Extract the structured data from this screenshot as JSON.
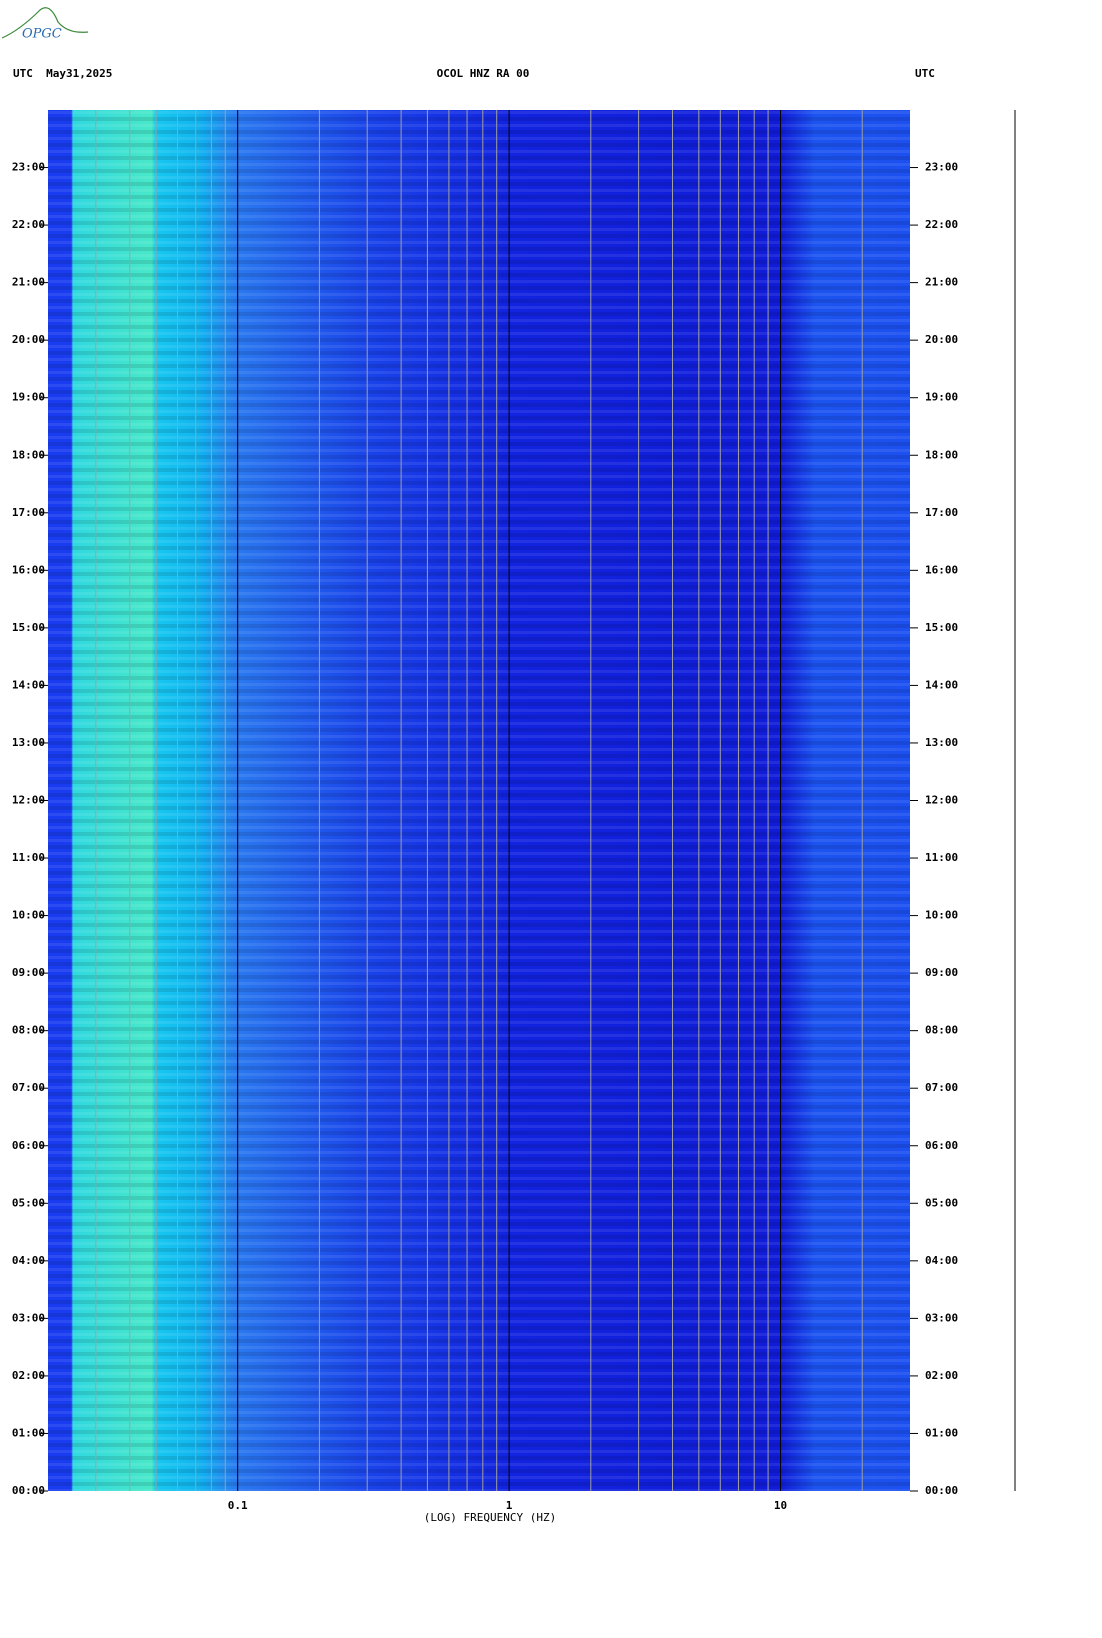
{
  "chart_data": {
    "type": "spectrogram",
    "logo": "OPGC",
    "title_left": "UTC  May31,2025",
    "title": "OCOL HNZ RA 00",
    "title_right": "UTC",
    "x_label": "(LOG) FREQUENCY (HZ)",
    "x_scale": "log",
    "xlim": [
      0.02,
      30
    ],
    "xticks": [
      0.1,
      1,
      10
    ],
    "x_minor_ticks": [
      0.03,
      0.04,
      0.05,
      0.06,
      0.07,
      0.08,
      0.09,
      0.2,
      0.3,
      0.4,
      0.5,
      0.6,
      0.7,
      0.8,
      0.9,
      2,
      3,
      4,
      5,
      6,
      7,
      8,
      9,
      20
    ],
    "ylim": [
      0,
      24
    ],
    "yticks": [
      {
        "value": 0,
        "label": "00:00"
      },
      {
        "value": 1,
        "label": "01:00"
      },
      {
        "value": 2,
        "label": "02:00"
      },
      {
        "value": 3,
        "label": "03:00"
      },
      {
        "value": 4,
        "label": "04:00"
      },
      {
        "value": 5,
        "label": "05:00"
      },
      {
        "value": 6,
        "label": "06:00"
      },
      {
        "value": 7,
        "label": "07:00"
      },
      {
        "value": 8,
        "label": "08:00"
      },
      {
        "value": 9,
        "label": "09:00"
      },
      {
        "value": 10,
        "label": "10:00"
      },
      {
        "value": 11,
        "label": "11:00"
      },
      {
        "value": 12,
        "label": "12:00"
      },
      {
        "value": 13,
        "label": "13:00"
      },
      {
        "value": 14,
        "label": "14:00"
      },
      {
        "value": 15,
        "label": "15:00"
      },
      {
        "value": 16,
        "label": "16:00"
      },
      {
        "value": 17,
        "label": "17:00"
      },
      {
        "value": 18,
        "label": "18:00"
      },
      {
        "value": 19,
        "label": "19:00"
      },
      {
        "value": 20,
        "label": "20:00"
      },
      {
        "value": 21,
        "label": "21:00"
      },
      {
        "value": 22,
        "label": "22:00"
      },
      {
        "value": 23,
        "label": "23:00"
      }
    ],
    "grid": true
  }
}
